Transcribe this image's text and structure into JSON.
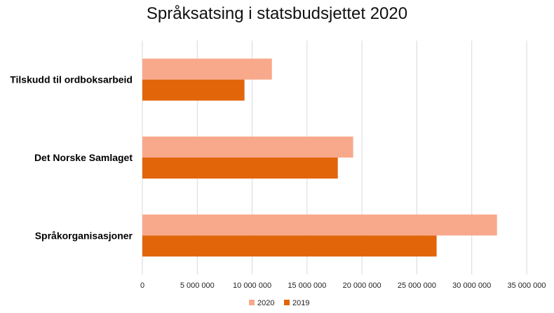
{
  "chart_data": {
    "type": "bar",
    "orientation": "horizontal",
    "title": "Språksatsing i statsbudsjettet 2020",
    "xlabel": "",
    "ylabel": "",
    "categories": [
      "Tilskudd til ordboksarbeid",
      "Det Norske Samlaget",
      "Språkorganisasjoner"
    ],
    "series": [
      {
        "name": "2020",
        "values": [
          11800000,
          19200000,
          32300000
        ],
        "color": "#f8a98b"
      },
      {
        "name": "2019",
        "values": [
          9300000,
          17800000,
          26800000
        ],
        "color": "#e2650a"
      }
    ],
    "xlim": [
      0,
      35000000
    ],
    "x_ticks": [
      0,
      5000000,
      10000000,
      15000000,
      20000000,
      25000000,
      30000000,
      35000000
    ],
    "x_tick_labels": [
      "0",
      "5 000 000",
      "10 000 000",
      "15 000 000",
      "20 000 000",
      "25 000 000",
      "30 000 000",
      "35 000 000"
    ],
    "grid": "vertical",
    "legend": "bottom"
  }
}
